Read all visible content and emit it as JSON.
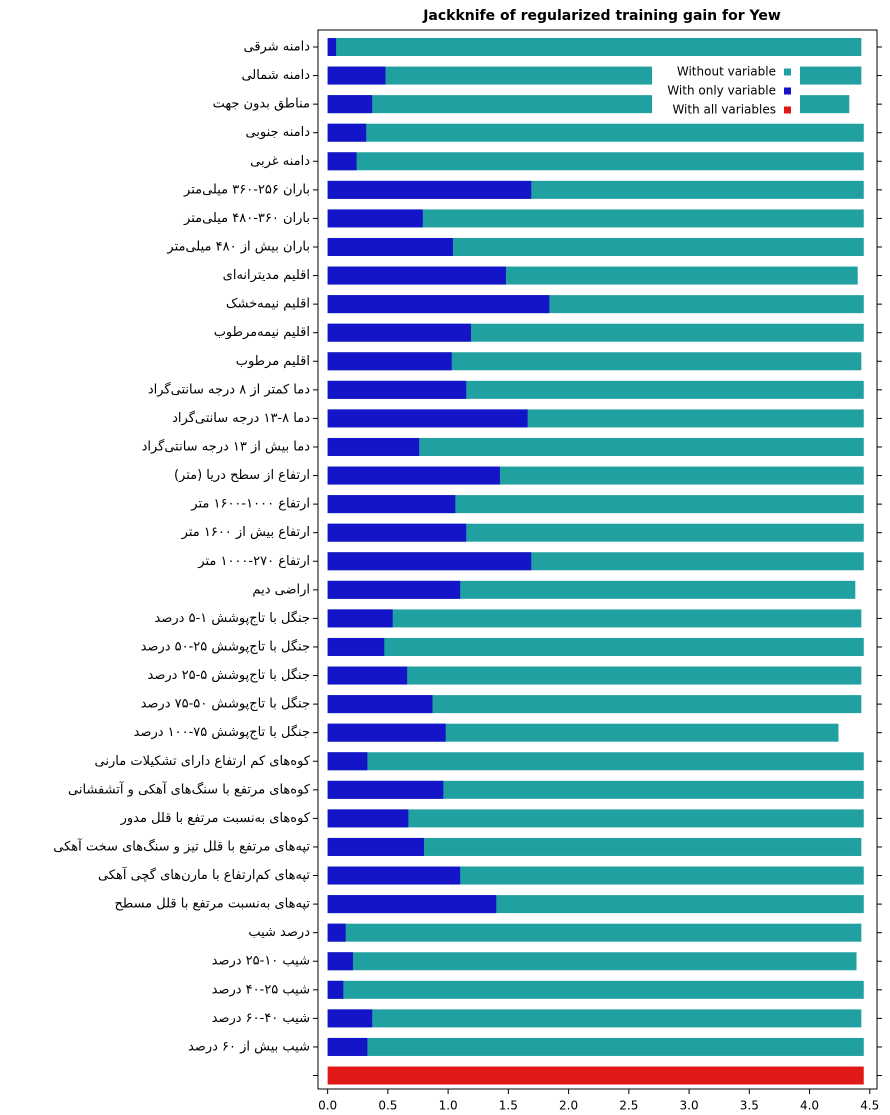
{
  "chart_data": {
    "type": "barh",
    "title": "Jackknife of regularized training gain for Yew",
    "categories": [
      "دامنه شرقی",
      "دامنه شمالی",
      "مناطق بدون جهت",
      "دامنه جنوبی",
      "دامنه غربی",
      "باران ۲۵۶-۳۶۰ میلی‌متر",
      "باران ۳۶۰-۴۸۰ میلی‌متر",
      "باران بیش از ۴۸۰ میلی‌متر",
      "اقلیم مدیترانه‌ای",
      "اقلیم نیمه‌خشک",
      "اقلیم نیمه‌مرطوب",
      "اقلیم مرطوب",
      "دما کمتر از ۸ درجه سانتی‌گراد",
      "دما ۸-۱۳ درجه سانتی‌گراد",
      "دما بیش از ۱۳ درجه سانتی‌گراد",
      "ارتفاع از سطح دریا (متر)",
      "ارتفاع ۱۰۰۰-۱۶۰۰ متر",
      "ارتفاع بیش از ۱۶۰۰ متر",
      "ارتفاع ۲۷۰-۱۰۰۰ متر",
      "اراضی دیم",
      "جنگل با تاج‌پوشش ۱-۵ درصد",
      "جنگل با تاج‌پوشش ۲۵-۵۰ درصد",
      "جنگل با تاج‌پوشش ۵-۲۵ درصد",
      "جنگل با تاج‌پوشش ۵۰-۷۵ درصد",
      "جنگل با تاج‌پوشش ۷۵-۱۰۰ درصد",
      "کوه‌های کم ارتفاع دارای تشکیلات مارنی",
      "کوه‌های مرتفع با سنگ‌های آهکی و آتشفشانی",
      "کوه‌های به‌نسبت مرتفع با قلل مدور",
      "تپه‌های مرتفع با قلل تیز و سنگ‌های سخت آهکی",
      "تپه‌های کم‌ارتفاع با مارن‌های گچی آهکی",
      "تپه‌های به‌نسبت مرتفع با قلل مسطح",
      "درصد شیب",
      "شیب ۱۰-۲۵ درصد",
      "شیب ۲۵-۴۰ درصد",
      "شیب ۴۰-۶۰ درصد",
      "شیب بیش از ۶۰ درصد",
      null
    ],
    "series": [
      {
        "name": "Without variable",
        "color": "#20a0a0",
        "values": [
          4.43,
          4.43,
          4.33,
          4.45,
          4.45,
          4.45,
          4.45,
          4.45,
          4.4,
          4.45,
          4.45,
          4.43,
          4.45,
          4.45,
          4.45,
          4.45,
          4.45,
          4.45,
          4.45,
          4.38,
          4.43,
          4.45,
          4.43,
          4.43,
          4.24,
          4.45,
          4.45,
          4.45,
          4.43,
          4.45,
          4.45,
          4.43,
          4.39,
          4.45,
          4.43,
          4.45,
          null
        ]
      },
      {
        "name": "With only variable",
        "color": "#1414c8",
        "values": [
          0.07,
          0.48,
          0.37,
          0.32,
          0.24,
          1.69,
          0.79,
          1.04,
          1.48,
          1.84,
          1.19,
          1.03,
          1.15,
          1.66,
          0.76,
          1.43,
          1.06,
          1.15,
          1.69,
          1.1,
          0.54,
          0.47,
          0.66,
          0.87,
          0.98,
          0.33,
          0.96,
          0.67,
          0.8,
          1.1,
          1.4,
          0.15,
          0.21,
          0.13,
          0.37,
          0.33,
          null
        ]
      },
      {
        "name": "With all variables",
        "color": "#e01818",
        "values": [
          null,
          null,
          null,
          null,
          null,
          null,
          null,
          null,
          null,
          null,
          null,
          null,
          null,
          null,
          null,
          null,
          null,
          null,
          null,
          null,
          null,
          null,
          null,
          null,
          null,
          null,
          null,
          null,
          null,
          null,
          null,
          null,
          null,
          null,
          null,
          null,
          4.45
        ]
      }
    ],
    "xlim": [
      -0.08,
      4.56
    ],
    "xticks": [
      {
        "value": 0,
        "label": "0.0"
      },
      0.5,
      {
        "value": 1,
        "label": "1.0"
      },
      1.5,
      {
        "value": 2,
        "label": "2.0"
      },
      2.5,
      {
        "value": 3,
        "label": "3.0"
      },
      3.5,
      {
        "value": 4,
        "label": "4.0"
      },
      4.5
    ],
    "legend": "upper right"
  }
}
